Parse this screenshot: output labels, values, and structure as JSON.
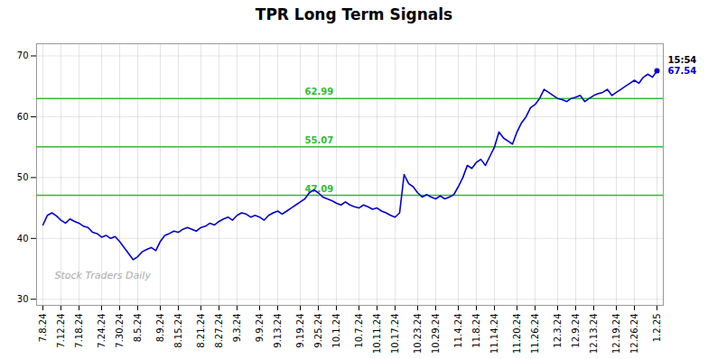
{
  "chart_data": {
    "type": "line",
    "title": "TPR Long Term Signals",
    "categories": [
      "7.8.24",
      null,
      null,
      null,
      "7.12.24",
      null,
      null,
      null,
      "7.18.24",
      null,
      null,
      null,
      null,
      "7.24.24",
      null,
      null,
      null,
      "7.30.24",
      null,
      null,
      null,
      "8.5.24",
      null,
      null,
      null,
      null,
      "8.9.24",
      null,
      null,
      null,
      "8.15.24",
      null,
      null,
      null,
      null,
      "8.21.24",
      null,
      null,
      null,
      "8.27.24",
      null,
      null,
      null,
      "9.3.24",
      null,
      null,
      null,
      null,
      "9.9.24",
      null,
      null,
      null,
      "9.13.24",
      null,
      null,
      null,
      null,
      "9.19.24",
      null,
      null,
      null,
      "9.25.24",
      null,
      null,
      null,
      "10.1.24",
      null,
      null,
      null,
      null,
      "10.7.24",
      null,
      null,
      null,
      "10.11.24",
      null,
      null,
      null,
      "10.17.24",
      null,
      null,
      null,
      null,
      "10.23.24",
      null,
      null,
      null,
      "10.29.24",
      null,
      null,
      null,
      null,
      "11.4.24",
      null,
      null,
      null,
      "11.8.24",
      null,
      null,
      null,
      "11.14.24",
      null,
      null,
      null,
      null,
      "11.20.24",
      null,
      null,
      null,
      "11.26.24",
      null,
      null,
      null,
      null,
      "12.3.24",
      null,
      null,
      null,
      "12.9.24",
      null,
      null,
      null,
      "12.13.24",
      null,
      null,
      null,
      null,
      "12.19.24",
      null,
      null,
      null,
      "12.26.24",
      null,
      null,
      null,
      null,
      "1.2.25"
    ],
    "values": [
      42.2,
      43.8,
      44.2,
      43.7,
      43.0,
      42.5,
      43.2,
      42.8,
      42.5,
      42.0,
      41.8,
      41.0,
      40.8,
      40.2,
      40.5,
      40.0,
      40.3,
      39.5,
      38.5,
      37.5,
      36.5,
      37.0,
      37.8,
      38.2,
      38.5,
      38.0,
      39.5,
      40.5,
      40.8,
      41.2,
      41.0,
      41.5,
      41.8,
      41.5,
      41.2,
      41.8,
      42.0,
      42.5,
      42.2,
      42.8,
      43.2,
      43.5,
      43.0,
      43.8,
      44.2,
      44.0,
      43.5,
      43.8,
      43.5,
      43.0,
      43.8,
      44.2,
      44.5,
      44.0,
      44.5,
      45.0,
      45.5,
      46.0,
      46.5,
      47.5,
      48.0,
      47.5,
      46.8,
      46.5,
      46.2,
      45.8,
      45.5,
      46.0,
      45.5,
      45.2,
      45.0,
      45.5,
      45.2,
      44.8,
      45.0,
      44.5,
      44.2,
      43.8,
      43.5,
      44.2,
      50.5,
      49.0,
      48.5,
      47.5,
      46.8,
      47.2,
      46.8,
      46.5,
      47.0,
      46.5,
      46.8,
      47.2,
      48.5,
      50.0,
      52.0,
      51.5,
      52.5,
      53.0,
      52.0,
      53.5,
      55.0,
      57.5,
      56.5,
      56.0,
      55.5,
      57.5,
      59.0,
      60.0,
      61.5,
      62.0,
      63.0,
      64.5,
      64.0,
      63.5,
      63.0,
      62.8,
      62.5,
      63.0,
      63.2,
      63.5,
      62.5,
      63.0,
      63.5,
      63.8,
      64.0,
      64.5,
      63.5,
      64.0,
      64.5,
      65.0,
      65.5,
      66.0,
      65.5,
      66.5,
      67.0,
      66.5,
      67.54
    ],
    "color": "#0000cc",
    "hlines": [
      {
        "value": 47.09,
        "label": "47.09",
        "color": "#33bb33"
      },
      {
        "value": 55.07,
        "label": "55.07",
        "color": "#33bb33"
      },
      {
        "value": 62.99,
        "label": "62.99",
        "color": "#33bb33"
      }
    ],
    "end_labels": [
      {
        "text": "15:54",
        "color": "#000000"
      },
      {
        "text": "67.54",
        "color": "#0000cc"
      }
    ],
    "watermark": {
      "text": "Stock Traders Daily",
      "color": "#aaaaaa"
    },
    "ylim": [
      29,
      72
    ],
    "yticks": [
      30,
      40,
      50,
      60,
      70
    ],
    "grid": true
  }
}
